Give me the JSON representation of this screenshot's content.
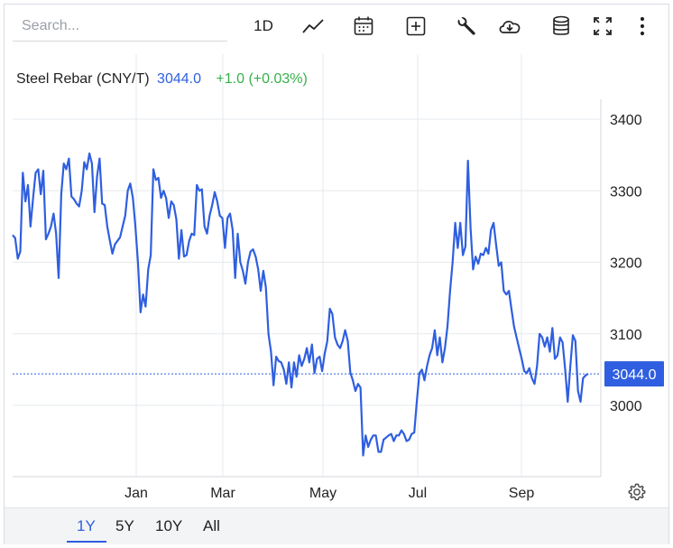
{
  "search": {
    "placeholder": "Search..."
  },
  "toolbar": {
    "interval_label": "1D",
    "icons": [
      "line-chart-icon",
      "calendar-icon",
      "add-indicator-icon",
      "wrench-icon",
      "cloud-download-icon",
      "database-icon",
      "fullscreen-icon",
      "more-vertical-icon"
    ]
  },
  "legend": {
    "name": "Steel Rebar (CNY/T)",
    "price": "3044.0",
    "change": "+1.0 (+0.03%)"
  },
  "ranges": [
    "1Y",
    "5Y",
    "10Y",
    "All"
  ],
  "active_range": "1Y",
  "colors": {
    "line": "#2f5fe0",
    "up": "#36b24a",
    "grid": "#e6e8ec",
    "last_label_bg": "#2f5fe0"
  },
  "settings_icon": "gear-icon",
  "chart_data": {
    "type": "line",
    "title": "Steel Rebar (CNY/T)",
    "xlabel": "",
    "ylabel": "",
    "x_ticks": [
      "Jan",
      "Mar",
      "May",
      "Jul",
      "Sep"
    ],
    "y_ticks": [
      3000,
      3100,
      3200,
      3300,
      3400
    ],
    "ylim": [
      2900,
      3450
    ],
    "grid": true,
    "last_value": 3044.0,
    "last_value_label": "3044.0",
    "series": [
      {
        "values": [
          3238,
          3234,
          3205,
          3215,
          3325,
          3285,
          3308,
          3250,
          3290,
          3325,
          3330,
          3295,
          3328,
          3232,
          3240,
          3250,
          3268,
          3240,
          3178,
          3295,
          3338,
          3330,
          3345,
          3292,
          3288,
          3282,
          3278,
          3300,
          3340,
          3330,
          3352,
          3338,
          3270,
          3320,
          3345,
          3282,
          3280,
          3250,
          3230,
          3212,
          3225,
          3230,
          3235,
          3250,
          3265,
          3300,
          3310,
          3290,
          3250,
          3200,
          3130,
          3155,
          3138,
          3190,
          3210,
          3330,
          3315,
          3318,
          3290,
          3300,
          3290,
          3262,
          3285,
          3280,
          3260,
          3205,
          3245,
          3208,
          3210,
          3230,
          3240,
          3238,
          3308,
          3300,
          3302,
          3250,
          3240,
          3265,
          3280,
          3298,
          3285,
          3265,
          3262,
          3220,
          3262,
          3268,
          3245,
          3178,
          3240,
          3200,
          3188,
          3170,
          3200,
          3215,
          3218,
          3208,
          3190,
          3160,
          3188,
          3165,
          3100,
          3075,
          3028,
          3068,
          3062,
          3060,
          3050,
          3030,
          3060,
          3025,
          3060,
          3040,
          3070,
          3055,
          3065,
          3080,
          3060,
          3085,
          3045,
          3065,
          3068,
          3048,
          3072,
          3090,
          3135,
          3128,
          3095,
          3085,
          3080,
          3090,
          3105,
          3090,
          3046,
          3035,
          3020,
          3030,
          3025,
          2930,
          2958,
          2942,
          2952,
          2958,
          2958,
          2935,
          2935,
          2952,
          2955,
          2958,
          2960,
          2950,
          2958,
          2958,
          2965,
          2960,
          2950,
          2952,
          2960,
          2962,
          3005,
          3045,
          3050,
          3035,
          3055,
          3070,
          3080,
          3105,
          3070,
          3095,
          3060,
          3080,
          3110,
          3160,
          3200,
          3255,
          3220,
          3255,
          3210,
          3222,
          3342,
          3248,
          3190,
          3208,
          3198,
          3212,
          3210,
          3220,
          3212,
          3245,
          3255,
          3225,
          3195,
          3200,
          3160,
          3155,
          3160,
          3135,
          3110,
          3095,
          3080,
          3065,
          3048,
          3045,
          3052,
          3038,
          3030,
          3055,
          3100,
          3095,
          3082,
          3095,
          3075,
          3108,
          3065,
          3070,
          3095,
          3088,
          3050,
          3005,
          3055,
          3098,
          3090,
          3020,
          3005,
          3038,
          3042,
          3044
        ]
      }
    ]
  }
}
